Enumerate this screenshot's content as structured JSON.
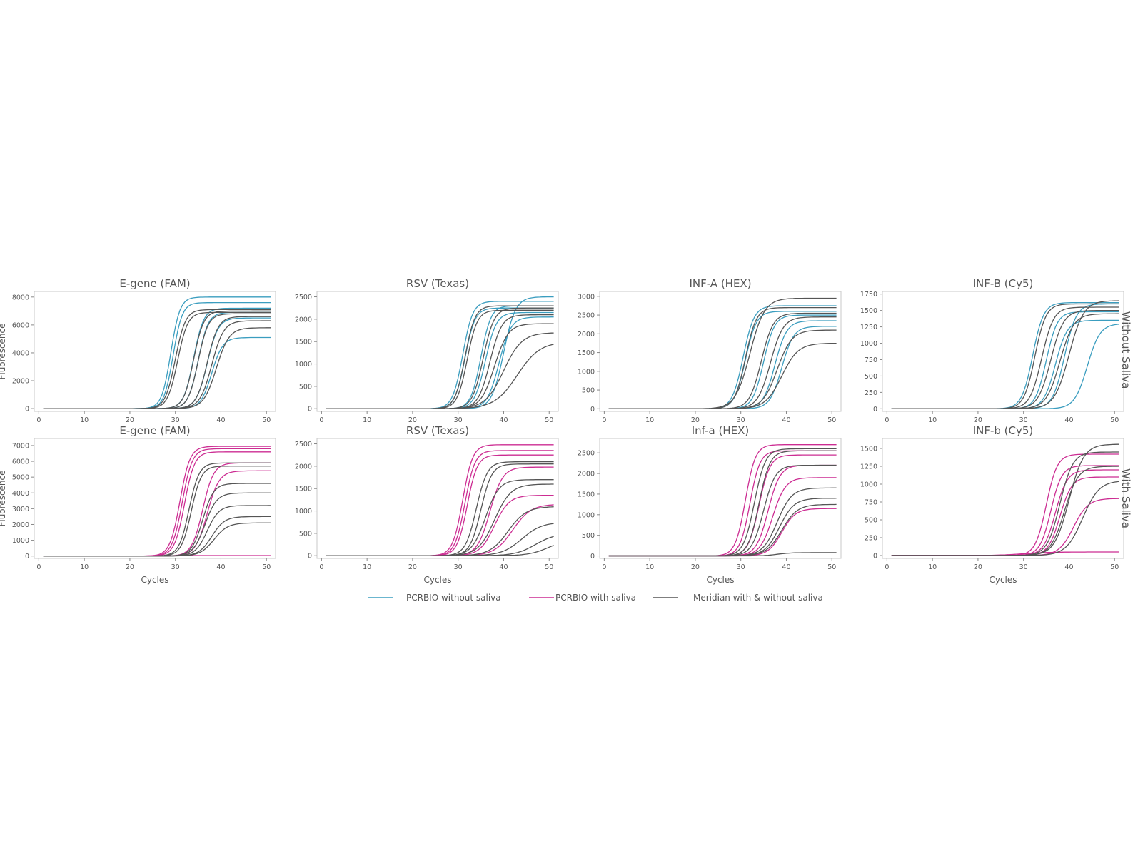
{
  "colors": {
    "pcrbio_without": "#3a9dbf",
    "pcrbio_with": "#cc2c92",
    "meridian": "#555555",
    "frame": "#c8c8c8",
    "text": "#555555"
  },
  "legend": [
    {
      "key": "pcrbio_without",
      "label": "PCRBIO without saliva"
    },
    {
      "key": "pcrbio_with",
      "label": "PCRBIO with saliva"
    },
    {
      "key": "meridian",
      "label": "Meridian with & without saliva"
    }
  ],
  "row_labels": [
    "Without Saliva",
    "With Saliva"
  ],
  "ylabel": "Fluorescence",
  "xlabel": "Cycles",
  "chart_data": [
    {
      "type": "line",
      "title": "E-gene (FAM)",
      "xlim": [
        -1,
        52
      ],
      "ylim": [
        -200,
        8400
      ],
      "xticks": [
        "0",
        "10",
        "20",
        "30",
        "40",
        "50"
      ],
      "yticks": [
        "0",
        "2000",
        "4000",
        "6000",
        "8000"
      ],
      "ylabel": "Fluorescence",
      "xlabel": "",
      "series": [
        {
          "group": "pcrbio_without",
          "plateau": 8000,
          "ct": 29,
          "slope": 1.0
        },
        {
          "group": "pcrbio_without",
          "plateau": 7600,
          "ct": 29.5,
          "slope": 1.0
        },
        {
          "group": "pcrbio_without",
          "plateau": 7200,
          "ct": 34,
          "slope": 1.1
        },
        {
          "group": "pcrbio_without",
          "plateau": 6900,
          "ct": 35,
          "slope": 1.1
        },
        {
          "group": "pcrbio_without",
          "plateau": 6500,
          "ct": 37,
          "slope": 1.2
        },
        {
          "group": "pcrbio_without",
          "plateau": 5100,
          "ct": 38,
          "slope": 1.2
        },
        {
          "group": "meridian",
          "plateau": 7100,
          "ct": 30,
          "slope": 1.1
        },
        {
          "group": "meridian",
          "plateau": 6900,
          "ct": 30.5,
          "slope": 1.1
        },
        {
          "group": "meridian",
          "plateau": 7000,
          "ct": 34,
          "slope": 1.1
        },
        {
          "group": "meridian",
          "plateau": 6800,
          "ct": 35,
          "slope": 1.1
        },
        {
          "group": "meridian",
          "plateau": 6600,
          "ct": 37,
          "slope": 1.2
        },
        {
          "group": "meridian",
          "plateau": 6300,
          "ct": 38,
          "slope": 1.3
        },
        {
          "group": "meridian",
          "plateau": 5800,
          "ct": 39,
          "slope": 1.4
        }
      ]
    },
    {
      "type": "line",
      "title": "RSV (Texas)",
      "xlim": [
        -1,
        52
      ],
      "ylim": [
        -60,
        2620
      ],
      "xticks": [
        "0",
        "10",
        "20",
        "30",
        "40",
        "50"
      ],
      "yticks": [
        "0",
        "500",
        "1000",
        "1500",
        "2000",
        "2500"
      ],
      "ylabel": "",
      "xlabel": "",
      "series": [
        {
          "group": "pcrbio_without",
          "plateau": 2400,
          "ct": 31,
          "slope": 1.1
        },
        {
          "group": "pcrbio_without",
          "plateau": 2250,
          "ct": 31.5,
          "slope": 1.1
        },
        {
          "group": "pcrbio_without",
          "plateau": 2300,
          "ct": 35,
          "slope": 1.1
        },
        {
          "group": "pcrbio_without",
          "plateau": 2150,
          "ct": 36,
          "slope": 1.2
        },
        {
          "group": "pcrbio_without",
          "plateau": 2500,
          "ct": 40,
          "slope": 1.3
        },
        {
          "group": "pcrbio_without",
          "plateau": 2050,
          "ct": 39,
          "slope": 1.3
        },
        {
          "group": "meridian",
          "plateau": 2300,
          "ct": 31.5,
          "slope": 1.1
        },
        {
          "group": "meridian",
          "plateau": 2200,
          "ct": 32,
          "slope": 1.1
        },
        {
          "group": "meridian",
          "plateau": 2250,
          "ct": 35.5,
          "slope": 1.2
        },
        {
          "group": "meridian",
          "plateau": 2100,
          "ct": 37,
          "slope": 1.3
        },
        {
          "group": "meridian",
          "plateau": 1900,
          "ct": 38,
          "slope": 1.5
        },
        {
          "group": "meridian",
          "plateau": 1700,
          "ct": 40,
          "slope": 2.0
        },
        {
          "group": "meridian",
          "plateau": 1500,
          "ct": 43,
          "slope": 2.5
        }
      ]
    },
    {
      "type": "line",
      "title": "INF-A (HEX)",
      "xlim": [
        -1,
        52
      ],
      "ylim": [
        -70,
        3130
      ],
      "xticks": [
        "0",
        "10",
        "20",
        "30",
        "40",
        "50"
      ],
      "yticks": [
        "0",
        "500",
        "1000",
        "1500",
        "2000",
        "2500",
        "3000"
      ],
      "ylabel": "",
      "xlabel": "",
      "series": [
        {
          "group": "pcrbio_without",
          "plateau": 2750,
          "ct": 30.5,
          "slope": 1.2
        },
        {
          "group": "pcrbio_without",
          "plateau": 2600,
          "ct": 31,
          "slope": 1.2
        },
        {
          "group": "pcrbio_without",
          "plateau": 2500,
          "ct": 35,
          "slope": 1.2
        },
        {
          "group": "pcrbio_without",
          "plateau": 2350,
          "ct": 37.5,
          "slope": 1.3
        },
        {
          "group": "pcrbio_without",
          "plateau": 2200,
          "ct": 39,
          "slope": 1.3
        },
        {
          "group": "meridian",
          "plateau": 2950,
          "ct": 32,
          "slope": 1.6
        },
        {
          "group": "meridian",
          "plateau": 2700,
          "ct": 31,
          "slope": 1.2
        },
        {
          "group": "meridian",
          "plateau": 2550,
          "ct": 34.5,
          "slope": 1.3
        },
        {
          "group": "meridian",
          "plateau": 2450,
          "ct": 36.5,
          "slope": 1.4
        },
        {
          "group": "meridian",
          "plateau": 2100,
          "ct": 38,
          "slope": 1.6
        },
        {
          "group": "meridian",
          "plateau": 1750,
          "ct": 39,
          "slope": 1.8
        }
      ]
    },
    {
      "type": "line",
      "title": "INF-B (Cy5)",
      "xlim": [
        -1,
        52
      ],
      "ylim": [
        -40,
        1790
      ],
      "xticks": [
        "0",
        "10",
        "20",
        "30",
        "40",
        "50"
      ],
      "yticks": [
        "0",
        "250",
        "500",
        "750",
        "1000",
        "1250",
        "1500",
        "1750"
      ],
      "ylabel": "",
      "xlabel": "",
      "series": [
        {
          "group": "pcrbio_without",
          "plateau": 1620,
          "ct": 32,
          "slope": 1.2
        },
        {
          "group": "pcrbio_without",
          "plateau": 1480,
          "ct": 35,
          "slope": 1.2
        },
        {
          "group": "pcrbio_without",
          "plateau": 1350,
          "ct": 37,
          "slope": 1.3
        },
        {
          "group": "pcrbio_without",
          "plateau": 1600,
          "ct": 39,
          "slope": 1.3
        },
        {
          "group": "pcrbio_without",
          "plateau": 1300,
          "ct": 44,
          "slope": 1.4
        },
        {
          "group": "meridian",
          "plateau": 1600,
          "ct": 32.5,
          "slope": 1.2
        },
        {
          "group": "meridian",
          "plateau": 1550,
          "ct": 34,
          "slope": 1.3
        },
        {
          "group": "meridian",
          "plateau": 1500,
          "ct": 36,
          "slope": 1.4
        },
        {
          "group": "meridian",
          "plateau": 1450,
          "ct": 38,
          "slope": 1.5
        },
        {
          "group": "meridian",
          "plateau": 1650,
          "ct": 40,
          "slope": 1.6
        }
      ]
    },
    {
      "type": "line",
      "title": "E-gene (FAM)",
      "xlim": [
        -1,
        52
      ],
      "ylim": [
        -150,
        7450
      ],
      "xticks": [
        "0",
        "10",
        "20",
        "30",
        "40",
        "50"
      ],
      "yticks": [
        "0",
        "1000",
        "2000",
        "3000",
        "4000",
        "5000",
        "6000",
        "7000"
      ],
      "ylabel": "Fluorescence",
      "xlabel": "Cycles",
      "series": [
        {
          "group": "pcrbio_with",
          "plateau": 6950,
          "ct": 31,
          "slope": 1.1
        },
        {
          "group": "pcrbio_with",
          "plateau": 6800,
          "ct": 31.5,
          "slope": 1.1
        },
        {
          "group": "pcrbio_with",
          "plateau": 6600,
          "ct": 32,
          "slope": 1.1
        },
        {
          "group": "pcrbio_with",
          "plateau": 5900,
          "ct": 36,
          "slope": 1.2
        },
        {
          "group": "pcrbio_with",
          "plateau": 5400,
          "ct": 37,
          "slope": 1.3
        },
        {
          "group": "pcrbio_with",
          "plateau": 30,
          "ct": 30,
          "slope": 1.0
        },
        {
          "group": "meridian",
          "plateau": 5900,
          "ct": 33,
          "slope": 1.1
        },
        {
          "group": "meridian",
          "plateau": 5700,
          "ct": 33.5,
          "slope": 1.1
        },
        {
          "group": "meridian",
          "plateau": 4600,
          "ct": 36,
          "slope": 1.2
        },
        {
          "group": "meridian",
          "plateau": 4000,
          "ct": 36.5,
          "slope": 1.3
        },
        {
          "group": "meridian",
          "plateau": 3200,
          "ct": 37,
          "slope": 1.3
        },
        {
          "group": "meridian",
          "plateau": 2500,
          "ct": 38,
          "slope": 1.4
        },
        {
          "group": "meridian",
          "plateau": 2100,
          "ct": 38.5,
          "slope": 1.5
        }
      ]
    },
    {
      "type": "line",
      "title": "RSV (Texas)",
      "xlim": [
        -1,
        52
      ],
      "ylim": [
        -60,
        2620
      ],
      "xticks": [
        "0",
        "10",
        "20",
        "30",
        "40",
        "50"
      ],
      "yticks": [
        "0",
        "500",
        "1000",
        "1500",
        "2000",
        "2500"
      ],
      "ylabel": "",
      "xlabel": "Cycles",
      "series": [
        {
          "group": "pcrbio_with",
          "plateau": 2480,
          "ct": 31,
          "slope": 1.1
        },
        {
          "group": "pcrbio_with",
          "plateau": 2350,
          "ct": 31.5,
          "slope": 1.1
        },
        {
          "group": "pcrbio_with",
          "plateau": 2250,
          "ct": 32,
          "slope": 1.1
        },
        {
          "group": "pcrbio_with",
          "plateau": 1980,
          "ct": 37,
          "slope": 1.4
        },
        {
          "group": "pcrbio_with",
          "plateau": 1350,
          "ct": 38,
          "slope": 1.6
        },
        {
          "group": "pcrbio_with",
          "plateau": 1150,
          "ct": 42,
          "slope": 2.0
        },
        {
          "group": "meridian",
          "plateau": 2100,
          "ct": 34,
          "slope": 1.2
        },
        {
          "group": "meridian",
          "plateau": 2050,
          "ct": 35,
          "slope": 1.2
        },
        {
          "group": "meridian",
          "plateau": 1700,
          "ct": 36,
          "slope": 1.5
        },
        {
          "group": "meridian",
          "plateau": 1600,
          "ct": 38,
          "slope": 1.8
        },
        {
          "group": "meridian",
          "plateau": 1100,
          "ct": 41,
          "slope": 2.0
        },
        {
          "group": "meridian",
          "plateau": 750,
          "ct": 44,
          "slope": 2.2
        },
        {
          "group": "meridian",
          "plateau": 500,
          "ct": 47,
          "slope": 2.2
        },
        {
          "group": "meridian",
          "plateau": 380,
          "ct": 50,
          "slope": 2.2
        }
      ]
    },
    {
      "type": "line",
      "title": "Inf-a (HEX)",
      "xlim": [
        -1,
        52
      ],
      "ylim": [
        -60,
        2850
      ],
      "xticks": [
        "0",
        "10",
        "20",
        "30",
        "40",
        "50"
      ],
      "yticks": [
        "0",
        "500",
        "1000",
        "1500",
        "2000",
        "2500"
      ],
      "ylabel": "",
      "xlabel": "Cycles",
      "series": [
        {
          "group": "pcrbio_with",
          "plateau": 2700,
          "ct": 31,
          "slope": 1.1
        },
        {
          "group": "pcrbio_with",
          "plateau": 2550,
          "ct": 32,
          "slope": 1.1
        },
        {
          "group": "pcrbio_with",
          "plateau": 2450,
          "ct": 34,
          "slope": 1.2
        },
        {
          "group": "pcrbio_with",
          "plateau": 2200,
          "ct": 36,
          "slope": 1.3
        },
        {
          "group": "pcrbio_with",
          "plateau": 1900,
          "ct": 37,
          "slope": 1.4
        },
        {
          "group": "pcrbio_with",
          "plateau": 1150,
          "ct": 39,
          "slope": 1.5
        },
        {
          "group": "meridian",
          "plateau": 2600,
          "ct": 33,
          "slope": 1.2
        },
        {
          "group": "meridian",
          "plateau": 2550,
          "ct": 34,
          "slope": 1.2
        },
        {
          "group": "meridian",
          "plateau": 2200,
          "ct": 35,
          "slope": 1.3
        },
        {
          "group": "meridian",
          "plateau": 1650,
          "ct": 38,
          "slope": 1.6
        },
        {
          "group": "meridian",
          "plateau": 1400,
          "ct": 38.5,
          "slope": 1.6
        },
        {
          "group": "meridian",
          "plateau": 1250,
          "ct": 39,
          "slope": 1.7
        },
        {
          "group": "meridian",
          "plateau": 80,
          "ct": 38,
          "slope": 1.5
        }
      ]
    },
    {
      "type": "line",
      "title": "INF-b (Cy5)",
      "xlim": [
        -1,
        52
      ],
      "ylim": [
        -40,
        1640
      ],
      "xticks": [
        "0",
        "10",
        "20",
        "30",
        "40",
        "50"
      ],
      "yticks": [
        "0",
        "250",
        "500",
        "750",
        "1000",
        "1250",
        "1500"
      ],
      "ylabel": "",
      "xlabel": "Cycles",
      "series": [
        {
          "group": "pcrbio_with",
          "plateau": 1420,
          "ct": 35,
          "slope": 1.2
        },
        {
          "group": "pcrbio_with",
          "plateau": 1260,
          "ct": 36,
          "slope": 1.2
        },
        {
          "group": "pcrbio_with",
          "plateau": 1200,
          "ct": 37,
          "slope": 1.3
        },
        {
          "group": "pcrbio_with",
          "plateau": 1100,
          "ct": 38,
          "slope": 1.3
        },
        {
          "group": "pcrbio_with",
          "plateau": 800,
          "ct": 41,
          "slope": 1.6
        },
        {
          "group": "pcrbio_with",
          "plateau": 50,
          "ct": 30,
          "slope": 3.0
        },
        {
          "group": "meridian",
          "plateau": 1560,
          "ct": 40,
          "slope": 1.6
        },
        {
          "group": "meridian",
          "plateau": 1450,
          "ct": 38,
          "slope": 1.4
        },
        {
          "group": "meridian",
          "plateau": 1250,
          "ct": 39,
          "slope": 1.5
        },
        {
          "group": "meridian",
          "plateau": 1050,
          "ct": 43,
          "slope": 1.8
        }
      ]
    }
  ]
}
